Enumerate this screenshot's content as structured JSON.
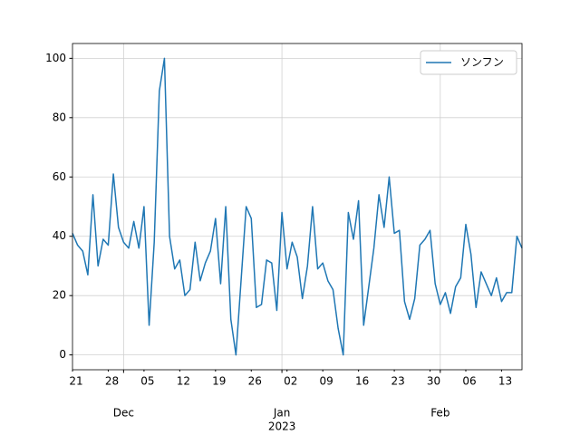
{
  "chart_data": {
    "type": "line",
    "x": [
      "2022-11-21",
      "2022-11-22",
      "2022-11-23",
      "2022-11-24",
      "2022-11-25",
      "2022-11-26",
      "2022-11-27",
      "2022-11-28",
      "2022-11-29",
      "2022-11-30",
      "2022-12-01",
      "2022-12-02",
      "2022-12-03",
      "2022-12-04",
      "2022-12-05",
      "2022-12-06",
      "2022-12-07",
      "2022-12-08",
      "2022-12-09",
      "2022-12-10",
      "2022-12-11",
      "2022-12-12",
      "2022-12-13",
      "2022-12-14",
      "2022-12-15",
      "2022-12-16",
      "2022-12-17",
      "2022-12-18",
      "2022-12-19",
      "2022-12-20",
      "2022-12-21",
      "2022-12-22",
      "2022-12-23",
      "2022-12-24",
      "2022-12-25",
      "2022-12-26",
      "2022-12-27",
      "2022-12-28",
      "2022-12-29",
      "2022-12-30",
      "2022-12-31",
      "2023-01-01",
      "2023-01-02",
      "2023-01-03",
      "2023-01-04",
      "2023-01-05",
      "2023-01-06",
      "2023-01-07",
      "2023-01-08",
      "2023-01-09",
      "2023-01-10",
      "2023-01-11",
      "2023-01-12",
      "2023-01-13",
      "2023-01-14",
      "2023-01-15",
      "2023-01-16",
      "2023-01-17",
      "2023-01-18",
      "2023-01-19",
      "2023-01-20",
      "2023-01-21",
      "2023-01-22",
      "2023-01-23",
      "2023-01-24",
      "2023-01-25",
      "2023-01-26",
      "2023-01-27",
      "2023-01-28",
      "2023-01-29",
      "2023-01-30",
      "2023-01-31",
      "2023-02-01",
      "2023-02-02",
      "2023-02-03",
      "2023-02-04",
      "2023-02-05",
      "2023-02-06",
      "2023-02-07",
      "2023-02-08",
      "2023-02-09",
      "2023-02-10",
      "2023-02-11",
      "2023-02-12",
      "2023-02-13",
      "2023-02-14",
      "2023-02-15",
      "2023-02-16",
      "2023-02-17"
    ],
    "series": [
      {
        "name": "ソンフン",
        "color": "#1f77b4",
        "values": [
          41,
          37,
          35,
          27,
          54,
          30,
          39,
          37,
          61,
          43,
          38,
          36,
          45,
          36,
          50,
          10,
          38,
          89,
          100,
          40,
          29,
          32,
          20,
          22,
          38,
          25,
          31,
          35,
          46,
          24,
          50,
          12,
          0,
          25,
          50,
          46,
          16,
          17,
          32,
          31,
          15,
          48,
          29,
          38,
          33,
          19,
          30,
          50,
          29,
          31,
          25,
          22,
          9,
          0,
          48,
          39,
          52,
          10,
          23,
          36,
          54,
          43,
          60,
          41,
          42,
          18,
          12,
          19,
          37,
          39,
          42,
          24,
          17,
          21,
          14,
          23,
          26,
          44,
          34,
          16,
          28,
          24,
          20,
          26,
          18,
          21,
          21,
          40,
          36
        ]
      }
    ],
    "xlim": [
      "2022-11-21",
      "2023-02-17"
    ],
    "xticks": [
      {
        "value": "2022-11-21",
        "label": "21"
      },
      {
        "value": "2022-11-28",
        "label": "28"
      },
      {
        "value": "2022-12-05",
        "label": "05"
      },
      {
        "value": "2022-12-12",
        "label": "12"
      },
      {
        "value": "2022-12-19",
        "label": "19"
      },
      {
        "value": "2022-12-26",
        "label": "26"
      },
      {
        "value": "2023-01-02",
        "label": "02"
      },
      {
        "value": "2023-01-09",
        "label": "09"
      },
      {
        "value": "2023-01-16",
        "label": "16"
      },
      {
        "value": "2023-01-23",
        "label": "23"
      },
      {
        "value": "2023-01-30",
        "label": "30"
      },
      {
        "value": "2023-02-06",
        "label": "06"
      },
      {
        "value": "2023-02-13",
        "label": "13"
      }
    ],
    "xticks_major": [
      {
        "value": "2022-12-01",
        "label": "Dec"
      },
      {
        "value": "2023-01-01",
        "label": "Jan",
        "sublabel": "2023"
      },
      {
        "value": "2023-02-01",
        "label": "Feb"
      }
    ],
    "ylim": [
      -5,
      105
    ],
    "yticks": [
      0,
      20,
      40,
      60,
      80,
      100
    ],
    "grid": true,
    "legend": "upper right"
  }
}
